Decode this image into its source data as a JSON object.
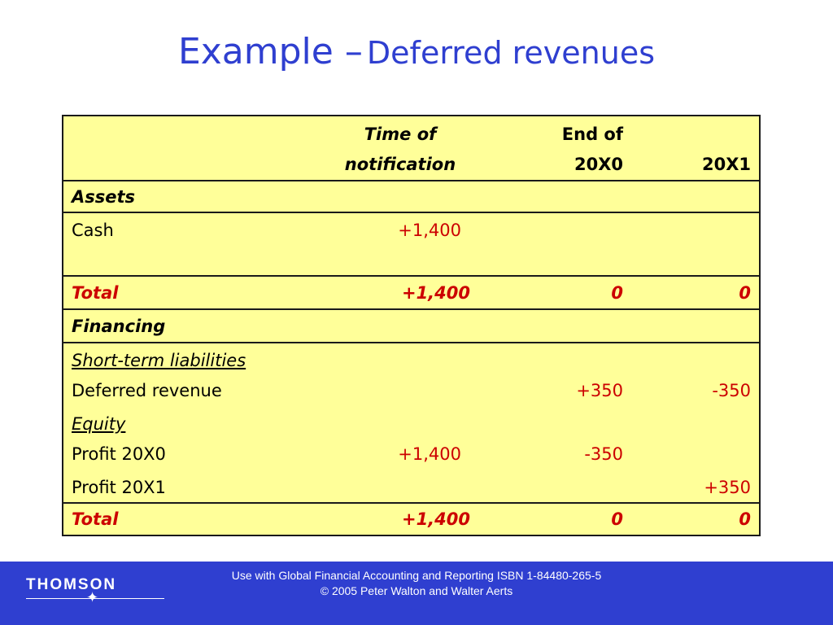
{
  "title": {
    "main": "Example –",
    "sub": "Deferred revenues"
  },
  "table": {
    "header": {
      "col1_line1": "Time of",
      "col1_line2": "notification",
      "col2_line1": "End of",
      "col2_line2": "20X0",
      "col3_line2": "20X1"
    },
    "assets_heading": "Assets",
    "cash": {
      "label": "Cash",
      "c1": "+1,400"
    },
    "total_assets": {
      "label": "Total",
      "c1": "+1,400",
      "c2": "0",
      "c3": "0"
    },
    "financing_heading": "Financing",
    "short_term_heading": "Short-term liabilities",
    "deferred_revenue": {
      "label": "Deferred revenue",
      "c2": "+350",
      "c3": "-350"
    },
    "equity_heading": "Equity",
    "profit_20x0": {
      "label": "Profit 20X0",
      "c1": "+1,400",
      "c2": "-350"
    },
    "profit_20x1": {
      "label": "Profit 20X1",
      "c3": "+350"
    },
    "total_financing": {
      "label": "Total",
      "c1": "+1,400",
      "c2": "0",
      "c3": "0"
    }
  },
  "footer": {
    "line1": "Use with Global Financial Accounting and Reporting ISBN 1-84480-265-5",
    "line2": "© 2005 Peter Walton and Walter Aerts",
    "logo_text": "THOMSON",
    "logo_star_icon": "star-icon",
    "colors": {
      "brand_blue": "#2f3fd0",
      "table_yellow": "#ffff99",
      "total_red": "#cc0000"
    }
  }
}
